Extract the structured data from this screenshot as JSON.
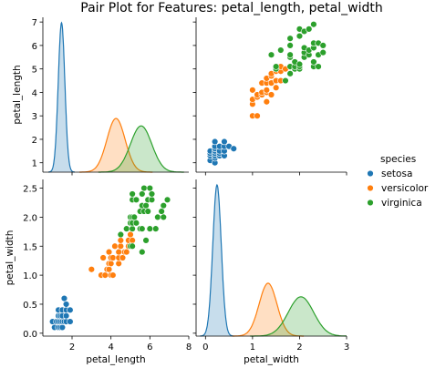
{
  "figure": {
    "title": "Pair Plot for Features: petal_length, petal_width"
  },
  "legend": {
    "title": "species",
    "placement": "right",
    "entries": [
      {
        "label": "setosa",
        "color": "#1f77b4"
      },
      {
        "label": "versicolor",
        "color": "#ff7f0e"
      },
      {
        "label": "virginica",
        "color": "#2ca02c"
      }
    ]
  },
  "chart_data": [
    {
      "type": "kde",
      "panel": "top-left",
      "xlabel": "",
      "ylabel": "petal_length",
      "yticks": [
        1,
        2,
        3,
        4,
        5,
        6,
        7
      ],
      "xlim": [
        0.5,
        8
      ],
      "series": [
        {
          "name": "setosa",
          "mean": 1.46,
          "sd": 0.17,
          "peak": 1.0
        },
        {
          "name": "versicolor",
          "mean": 4.26,
          "sd": 0.47,
          "peak": 0.36
        },
        {
          "name": "virginica",
          "mean": 5.55,
          "sd": 0.55,
          "peak": 0.31
        }
      ]
    },
    {
      "type": "scatter",
      "panel": "top-right",
      "xlabel": "",
      "ylabel": "",
      "xlim": [
        -0.2,
        3.0
      ],
      "ylim": [
        0.6,
        7.2
      ],
      "series": [
        {
          "name": "setosa",
          "points": [
            [
              0.1,
              1.1
            ],
            [
              0.1,
              1.3
            ],
            [
              0.1,
              1.4
            ],
            [
              0.1,
              1.5
            ],
            [
              0.2,
              1.0
            ],
            [
              0.2,
              1.2
            ],
            [
              0.2,
              1.3
            ],
            [
              0.2,
              1.4
            ],
            [
              0.2,
              1.5
            ],
            [
              0.2,
              1.6
            ],
            [
              0.2,
              1.7
            ],
            [
              0.2,
              1.9
            ],
            [
              0.3,
              1.3
            ],
            [
              0.3,
              1.4
            ],
            [
              0.3,
              1.5
            ],
            [
              0.3,
              1.7
            ],
            [
              0.4,
              1.3
            ],
            [
              0.4,
              1.5
            ],
            [
              0.4,
              1.7
            ],
            [
              0.4,
              1.9
            ],
            [
              0.5,
              1.7
            ],
            [
              0.6,
              1.6
            ]
          ]
        },
        {
          "name": "versicolor",
          "points": [
            [
              1.0,
              3.0
            ],
            [
              1.0,
              3.5
            ],
            [
              1.0,
              3.7
            ],
            [
              1.0,
              4.1
            ],
            [
              1.1,
              3.0
            ],
            [
              1.1,
              3.8
            ],
            [
              1.1,
              3.9
            ],
            [
              1.2,
              3.9
            ],
            [
              1.2,
              4.0
            ],
            [
              1.2,
              4.4
            ],
            [
              1.3,
              3.6
            ],
            [
              1.3,
              4.0
            ],
            [
              1.3,
              4.1
            ],
            [
              1.3,
              4.4
            ],
            [
              1.3,
              4.6
            ],
            [
              1.4,
              3.9
            ],
            [
              1.4,
              4.4
            ],
            [
              1.4,
              4.7
            ],
            [
              1.4,
              4.8
            ],
            [
              1.5,
              4.2
            ],
            [
              1.5,
              4.5
            ],
            [
              1.5,
              4.9
            ],
            [
              1.5,
              5.1
            ],
            [
              1.6,
              4.5
            ],
            [
              1.6,
              4.9
            ],
            [
              1.6,
              5.1
            ],
            [
              1.7,
              5.0
            ],
            [
              1.8,
              4.8
            ]
          ]
        },
        {
          "name": "virginica",
          "points": [
            [
              1.4,
              5.6
            ],
            [
              1.5,
              5.0
            ],
            [
              1.5,
              5.1
            ],
            [
              1.6,
              5.8
            ],
            [
              1.7,
              4.5
            ],
            [
              1.8,
              4.8
            ],
            [
              1.8,
              5.1
            ],
            [
              1.8,
              5.5
            ],
            [
              1.8,
              5.6
            ],
            [
              1.8,
              6.0
            ],
            [
              1.8,
              6.3
            ],
            [
              1.9,
              5.0
            ],
            [
              1.9,
              5.1
            ],
            [
              1.9,
              5.3
            ],
            [
              2.0,
              5.0
            ],
            [
              2.0,
              5.1
            ],
            [
              2.0,
              5.2
            ],
            [
              2.0,
              6.4
            ],
            [
              2.0,
              6.7
            ],
            [
              2.1,
              5.5
            ],
            [
              2.1,
              5.7
            ],
            [
              2.1,
              5.9
            ],
            [
              2.1,
              6.6
            ],
            [
              2.2,
              5.6
            ],
            [
              2.2,
              5.8
            ],
            [
              2.2,
              6.7
            ],
            [
              2.3,
              5.1
            ],
            [
              2.3,
              5.3
            ],
            [
              2.3,
              5.9
            ],
            [
              2.3,
              6.1
            ],
            [
              2.3,
              6.9
            ],
            [
              2.4,
              5.1
            ],
            [
              2.4,
              5.6
            ],
            [
              2.4,
              6.1
            ],
            [
              2.5,
              5.7
            ],
            [
              2.5,
              6.0
            ]
          ]
        }
      ]
    },
    {
      "type": "scatter",
      "panel": "bottom-left",
      "xlabel": "petal_length",
      "ylabel": "petal_width",
      "xticks": [
        2,
        4,
        6,
        8
      ],
      "yticks": [
        0.0,
        0.5,
        1.0,
        1.5,
        2.0,
        2.5
      ],
      "xlim": [
        0.5,
        8
      ],
      "ylim": [
        -0.05,
        2.65
      ],
      "series": [
        {
          "name": "setosa",
          "points": [
            [
              1.1,
              0.1
            ],
            [
              1.3,
              0.1
            ],
            [
              1.4,
              0.1
            ],
            [
              1.5,
              0.1
            ],
            [
              1.0,
              0.2
            ],
            [
              1.2,
              0.2
            ],
            [
              1.3,
              0.2
            ],
            [
              1.4,
              0.2
            ],
            [
              1.5,
              0.2
            ],
            [
              1.6,
              0.2
            ],
            [
              1.7,
              0.2
            ],
            [
              1.9,
              0.2
            ],
            [
              1.3,
              0.3
            ],
            [
              1.4,
              0.3
            ],
            [
              1.5,
              0.3
            ],
            [
              1.7,
              0.3
            ],
            [
              1.3,
              0.4
            ],
            [
              1.5,
              0.4
            ],
            [
              1.7,
              0.4
            ],
            [
              1.9,
              0.4
            ],
            [
              1.7,
              0.5
            ],
            [
              1.6,
              0.6
            ]
          ]
        },
        {
          "name": "versicolor",
          "points": [
            [
              3.0,
              1.1
            ],
            [
              3.5,
              1.0
            ],
            [
              3.7,
              1.0
            ],
            [
              3.8,
              1.1
            ],
            [
              3.9,
              1.1
            ],
            [
              3.9,
              1.2
            ],
            [
              3.9,
              1.4
            ],
            [
              4.0,
              1.0
            ],
            [
              4.0,
              1.2
            ],
            [
              4.0,
              1.3
            ],
            [
              4.1,
              1.0
            ],
            [
              4.1,
              1.3
            ],
            [
              4.2,
              1.5
            ],
            [
              4.4,
              1.2
            ],
            [
              4.4,
              1.3
            ],
            [
              4.4,
              1.4
            ],
            [
              4.5,
              1.5
            ],
            [
              4.5,
              1.6
            ],
            [
              4.6,
              1.3
            ],
            [
              4.7,
              1.4
            ],
            [
              4.8,
              1.4
            ],
            [
              4.8,
              1.8
            ],
            [
              4.9,
              1.5
            ],
            [
              4.9,
              1.6
            ],
            [
              5.0,
              1.7
            ],
            [
              5.1,
              1.5
            ],
            [
              5.1,
              1.6
            ],
            [
              3.6,
              1.3
            ]
          ]
        },
        {
          "name": "virginica",
          "points": [
            [
              4.5,
              1.7
            ],
            [
              4.8,
              1.8
            ],
            [
              5.0,
              1.5
            ],
            [
              5.0,
              1.9
            ],
            [
              5.0,
              2.0
            ],
            [
              5.1,
              1.5
            ],
            [
              5.1,
              1.8
            ],
            [
              5.1,
              1.9
            ],
            [
              5.1,
              2.0
            ],
            [
              5.1,
              2.3
            ],
            [
              5.1,
              2.4
            ],
            [
              5.2,
              2.0
            ],
            [
              5.3,
              1.9
            ],
            [
              5.3,
              2.3
            ],
            [
              5.5,
              1.8
            ],
            [
              5.5,
              2.1
            ],
            [
              5.6,
              1.4
            ],
            [
              5.6,
              1.8
            ],
            [
              5.6,
              2.2
            ],
            [
              5.6,
              2.4
            ],
            [
              5.7,
              2.1
            ],
            [
              5.7,
              2.5
            ],
            [
              5.8,
              1.6
            ],
            [
              5.8,
              2.2
            ],
            [
              5.9,
              2.1
            ],
            [
              5.9,
              2.3
            ],
            [
              6.0,
              1.8
            ],
            [
              6.0,
              2.5
            ],
            [
              6.1,
              2.3
            ],
            [
              6.1,
              2.4
            ],
            [
              6.3,
              1.8
            ],
            [
              6.4,
              2.0
            ],
            [
              6.6,
              2.1
            ],
            [
              6.7,
              2.0
            ],
            [
              6.7,
              2.2
            ],
            [
              6.9,
              2.3
            ]
          ]
        }
      ]
    },
    {
      "type": "kde",
      "panel": "bottom-right",
      "xlabel": "petal_width",
      "ylabel": "",
      "xticks": [
        0,
        1,
        2,
        3
      ],
      "xlim": [
        -0.2,
        3.0
      ],
      "series": [
        {
          "name": "setosa",
          "mean": 0.245,
          "sd": 0.09,
          "peak": 1.0
        },
        {
          "name": "versicolor",
          "mean": 1.33,
          "sd": 0.19,
          "peak": 0.35
        },
        {
          "name": "virginica",
          "mean": 2.03,
          "sd": 0.27,
          "peak": 0.26
        }
      ]
    }
  ]
}
